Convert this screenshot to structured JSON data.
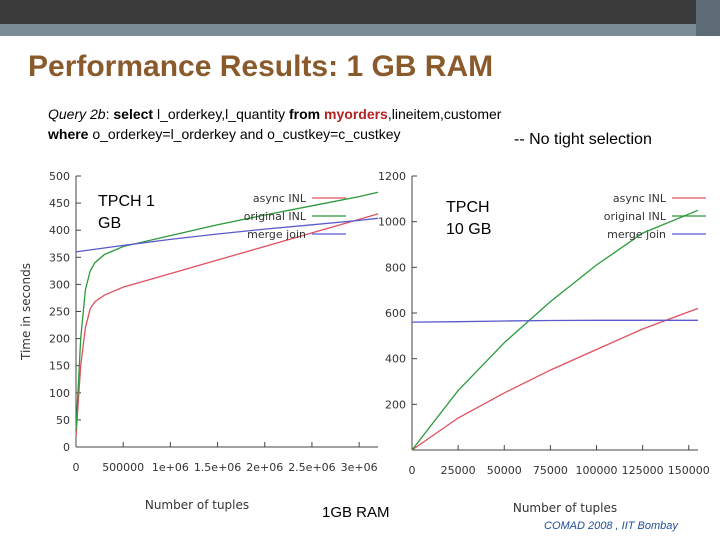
{
  "slide": {
    "title": "Performance Results: 1 GB RAM",
    "query_label": "Query 2b",
    "query_sep": ": ",
    "select_kw": "select",
    "select_cols": " l_orderkey,l_quantity ",
    "from_kw": "from",
    "table_myorders": " myorders",
    "tables_rest": ",lineitem,customer",
    "where_kw": "where",
    "where_cond": " o_orderkey=l_orderkey and o_custkey=c_custkey",
    "note": "-- No tight selection",
    "footer_ram": "1GB RAM",
    "footer_src": "COMAD 2008 , IIT Bombay"
  },
  "colors": {
    "async_inl": "#e05060",
    "original_inl": "#2a9a3a",
    "merge_join": "#5a5acd",
    "title": "#8a5a2b"
  },
  "chart_data": [
    {
      "type": "line",
      "overlay_label": [
        "TPCH 1",
        "GB"
      ],
      "ylabel": "Time in seconds",
      "xlabel": "Number of tuples",
      "xlim": [
        0,
        3200000
      ],
      "ylim": [
        0,
        500
      ],
      "x_ticks": [
        0,
        500000,
        1000000,
        1500000,
        2000000,
        2500000,
        3000000
      ],
      "x_tick_labels": [
        "0",
        "500000",
        "1e+06",
        "1.5e+06",
        "2e+06",
        "2.5e+06",
        "3e+06"
      ],
      "y_ticks": [
        0,
        50,
        100,
        150,
        200,
        250,
        300,
        350,
        400,
        450,
        500
      ],
      "y_tick_labels": [
        "0",
        "50",
        "100",
        "150",
        "200",
        "250",
        "300",
        "350",
        "400",
        "450",
        "500"
      ],
      "legend_position": "top-right",
      "grid": false,
      "series": [
        {
          "name": "async INL",
          "color_key": "async_inl",
          "x": [
            0,
            50000,
            100000,
            150000,
            200000,
            300000,
            500000,
            1000000,
            1500000,
            2000000,
            2500000,
            3000000,
            3200000
          ],
          "y": [
            20,
            150,
            220,
            255,
            268,
            280,
            295,
            320,
            345,
            370,
            395,
            420,
            430
          ]
        },
        {
          "name": "original INL",
          "color_key": "original_inl",
          "x": [
            0,
            50000,
            100000,
            150000,
            200000,
            300000,
            500000,
            1000000,
            1500000,
            2000000,
            2500000,
            3000000,
            3200000
          ],
          "y": [
            30,
            200,
            290,
            325,
            340,
            355,
            370,
            390,
            410,
            428,
            445,
            462,
            470
          ]
        },
        {
          "name": "merge join",
          "color_key": "merge_join",
          "x": [
            0,
            500000,
            1000000,
            1500000,
            2000000,
            2500000,
            3000000,
            3200000
          ],
          "y": [
            360,
            372,
            383,
            393,
            402,
            410,
            418,
            422
          ]
        }
      ]
    },
    {
      "type": "line",
      "overlay_label": [
        "TPCH",
        "10 GB"
      ],
      "xlabel": "Number of tuples",
      "xlim": [
        0,
        155000
      ],
      "ylim": [
        0,
        1200
      ],
      "x_ticks": [
        0,
        25000,
        50000,
        75000,
        100000,
        125000,
        150000
      ],
      "x_tick_labels": [
        "0",
        "25000",
        "50000",
        "75000",
        "100000",
        "125000",
        "150000"
      ],
      "y_ticks": [
        200,
        400,
        600,
        800,
        1000,
        1200
      ],
      "y_tick_labels": [
        "200",
        "400",
        "600",
        "800",
        "1000",
        "1200"
      ],
      "legend_position": "top-right",
      "grid": false,
      "series": [
        {
          "name": "async INL",
          "color_key": "async_inl",
          "x": [
            0,
            25000,
            50000,
            75000,
            100000,
            125000,
            155000
          ],
          "y": [
            0,
            140,
            250,
            350,
            440,
            530,
            620
          ]
        },
        {
          "name": "original INL",
          "color_key": "original_inl",
          "x": [
            0,
            25000,
            50000,
            75000,
            100000,
            125000,
            155000
          ],
          "y": [
            0,
            260,
            470,
            650,
            810,
            950,
            1050
          ]
        },
        {
          "name": "merge join",
          "color_key": "merge_join",
          "x": [
            0,
            25000,
            50000,
            75000,
            100000,
            125000,
            155000
          ],
          "y": [
            560,
            562,
            565,
            567,
            568,
            568,
            568
          ]
        }
      ]
    }
  ]
}
